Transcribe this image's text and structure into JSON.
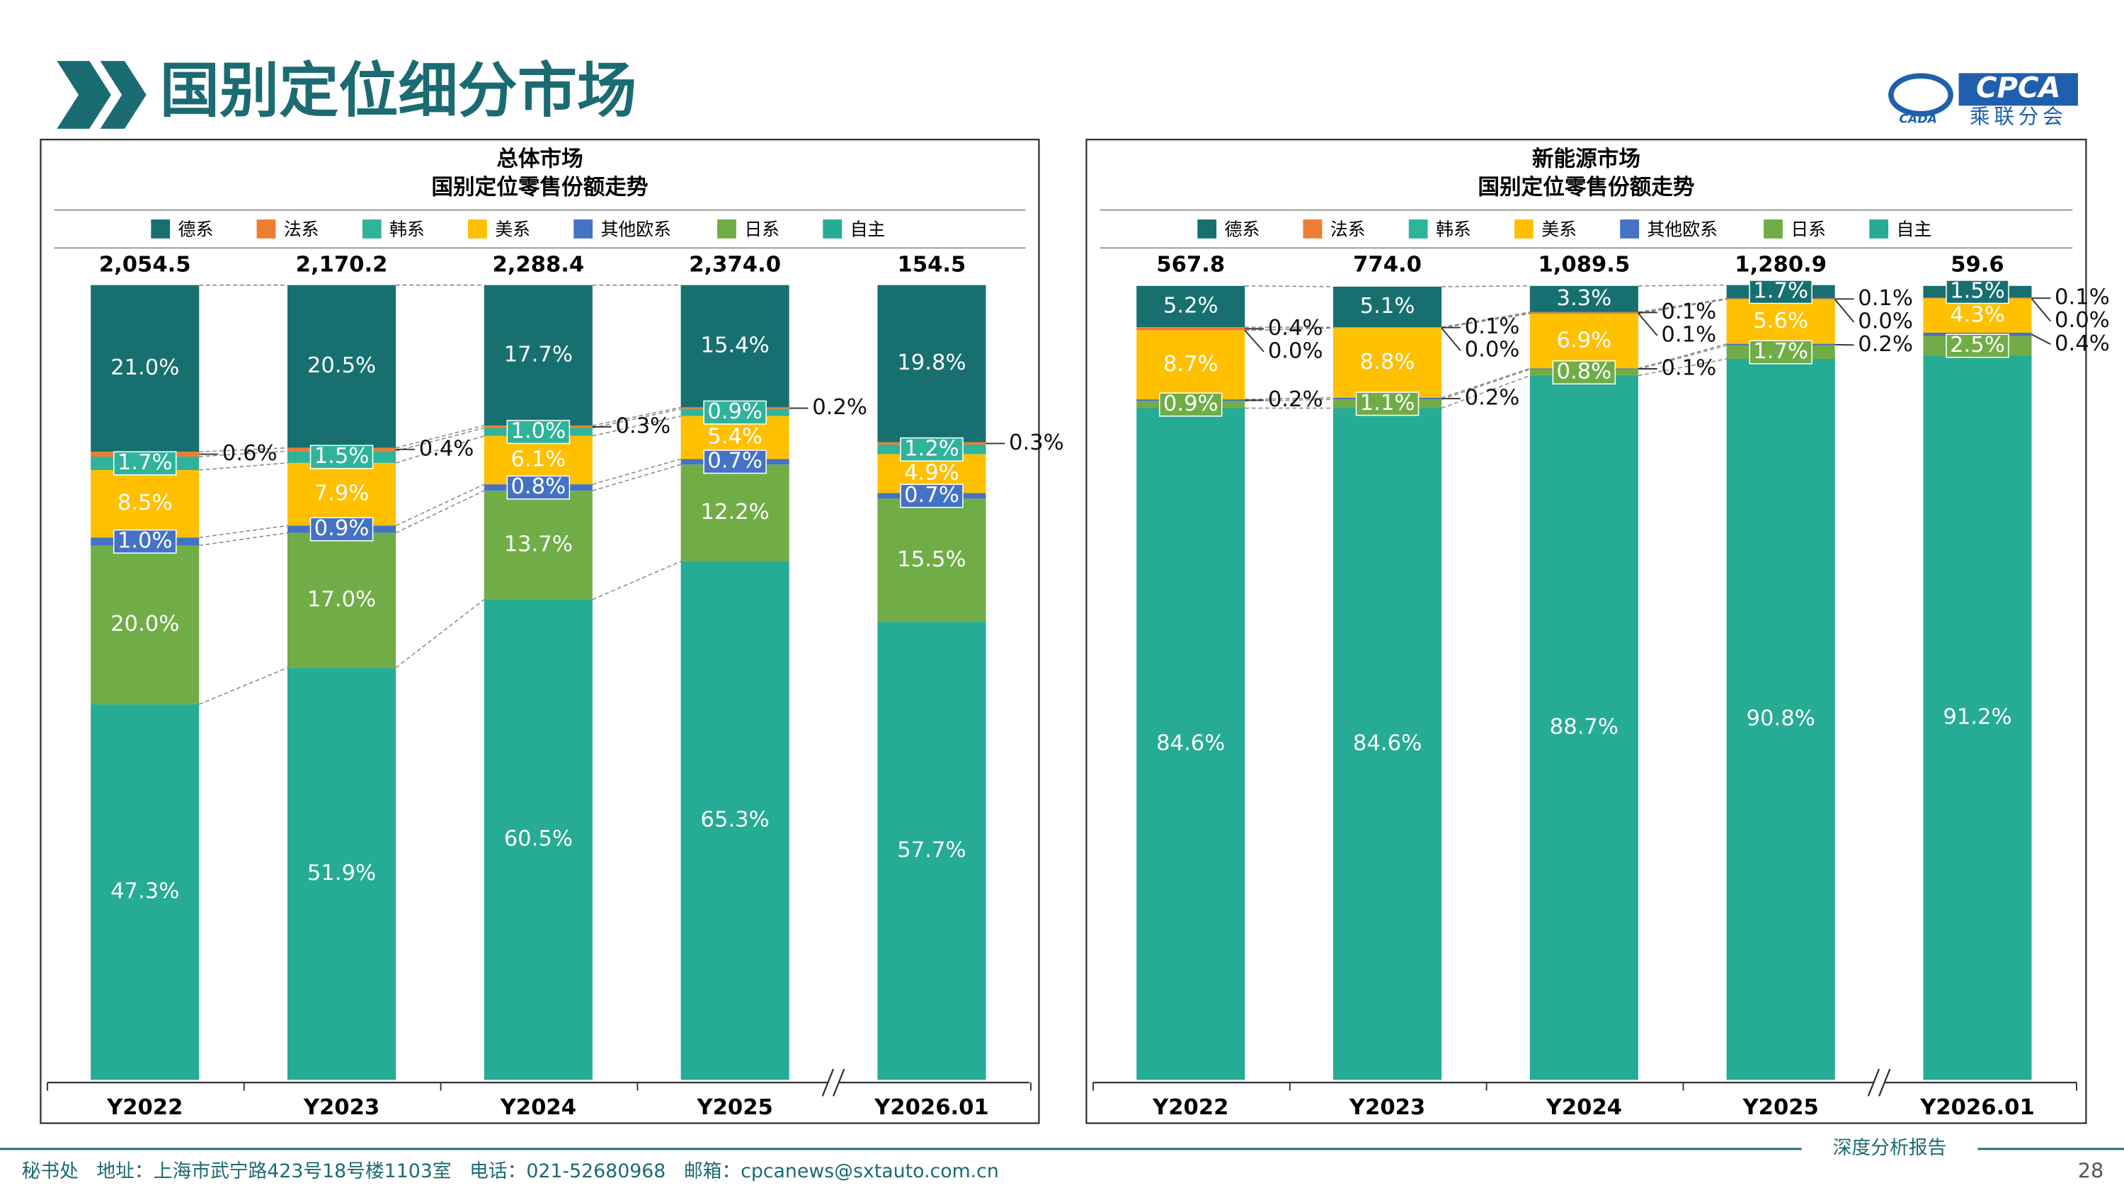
{
  "header": {
    "title": "国别定位细分市场",
    "logo_text": "CPCA",
    "logo_subtext": "乘联分会",
    "logo_small": "CADA"
  },
  "chart_data": [
    {
      "type": "bar",
      "stacked": true,
      "title": "总体市场",
      "subtitle": "国别定位零售份额走势",
      "categories": [
        "Y2022",
        "Y2023",
        "Y2024",
        "Y2025",
        "Y2026.01"
      ],
      "totals": {
        "values": [
          2054.5,
          2170.2,
          2288.4,
          2374.0,
          154.5
        ],
        "value_labels": [
          "2,054.5",
          "2,170.2",
          "2,288.4",
          "2,374.0",
          "154.5"
        ]
      },
      "ylim": [
        0,
        100
      ],
      "axis_break": true,
      "series": [
        {
          "name": "德系",
          "color": "#17706f",
          "values": [
            21.0,
            20.5,
            17.7,
            15.4,
            19.8
          ],
          "value_labels": [
            "21.0%",
            "20.5%",
            "17.7%",
            "15.4%",
            "19.8%"
          ]
        },
        {
          "name": "法系",
          "color": "#ed7d31",
          "values": [
            0.6,
            0.4,
            0.3,
            0.2,
            0.3
          ],
          "value_labels": [
            "0.6%",
            "0.4%",
            "0.3%",
            "0.2%",
            "0.3%"
          ]
        },
        {
          "name": "韩系",
          "color": "#2fb39b",
          "values": [
            1.7,
            1.5,
            1.0,
            0.9,
            1.2
          ],
          "value_labels": [
            "1.7%",
            "1.5%",
            "1.0%",
            "0.9%",
            "1.2%"
          ]
        },
        {
          "name": "美系",
          "color": "#ffc000",
          "values": [
            8.5,
            7.9,
            6.1,
            5.4,
            4.9
          ],
          "value_labels": [
            "8.5%",
            "7.9%",
            "6.1%",
            "5.4%",
            "4.9%"
          ]
        },
        {
          "name": "其他欧系",
          "color": "#4472c4",
          "values": [
            1.0,
            0.9,
            0.8,
            0.7,
            0.7
          ],
          "value_labels": [
            "1.0%",
            "0.9%",
            "0.8%",
            "0.7%",
            "0.7%"
          ]
        },
        {
          "name": "日系",
          "color": "#70ad47",
          "values": [
            20.0,
            17.0,
            13.7,
            12.2,
            15.5
          ],
          "value_labels": [
            "20.0%",
            "17.0%",
            "13.7%",
            "12.2%",
            "15.5%"
          ]
        },
        {
          "name": "自主",
          "color": "#26ab94",
          "values": [
            47.3,
            51.9,
            60.5,
            65.3,
            57.7
          ],
          "value_labels": [
            "47.3%",
            "51.9%",
            "60.5%",
            "65.3%",
            "57.7%"
          ]
        }
      ]
    },
    {
      "type": "bar",
      "stacked": true,
      "title": "新能源市场",
      "subtitle": "国别定位零售份额走势",
      "categories": [
        "Y2022",
        "Y2023",
        "Y2024",
        "Y2025",
        "Y2026.01"
      ],
      "totals": {
        "values": [
          567.8,
          774.0,
          1089.5,
          1280.9,
          59.6
        ],
        "value_labels": [
          "567.8",
          "774.0",
          "1,089.5",
          "1,280.9",
          "59.6"
        ]
      },
      "ylim": [
        0,
        100
      ],
      "axis_break": true,
      "series": [
        {
          "name": "德系",
          "color": "#17706f",
          "values": [
            5.2,
            5.1,
            3.3,
            1.7,
            1.5
          ],
          "value_labels": [
            "5.2%",
            "5.1%",
            "3.3%",
            "1.7%",
            "1.5%"
          ]
        },
        {
          "name": "法系",
          "color": "#ed7d31",
          "values": [
            0.4,
            0.1,
            0.1,
            0.1,
            0.1
          ],
          "value_labels": [
            "0.4%",
            "0.1%",
            "0.1%",
            "0.1%",
            "0.1%"
          ]
        },
        {
          "name": "韩系",
          "color": "#2fb39b",
          "values": [
            0.0,
            0.0,
            0.1,
            0.0,
            0.0
          ],
          "value_labels": [
            "0.0%",
            "0.0%",
            "0.1%",
            "0.0%",
            "0.0%"
          ]
        },
        {
          "name": "美系",
          "color": "#ffc000",
          "values": [
            8.7,
            8.8,
            6.9,
            5.6,
            4.3
          ],
          "value_labels": [
            "8.7%",
            "8.8%",
            "6.9%",
            "5.6%",
            "4.3%"
          ]
        },
        {
          "name": "其他欧系",
          "color": "#4472c4",
          "values": [
            0.2,
            0.2,
            0.1,
            0.2,
            0.4
          ],
          "value_labels": [
            "0.2%",
            "0.2%",
            "0.1%",
            "0.2%",
            "0.4%"
          ]
        },
        {
          "name": "日系",
          "color": "#70ad47",
          "values": [
            0.9,
            1.1,
            0.8,
            1.7,
            2.5
          ],
          "value_labels": [
            "0.9%",
            "1.1%",
            "0.8%",
            "1.7%",
            "2.5%"
          ]
        },
        {
          "name": "自主",
          "color": "#26ab94",
          "values": [
            84.6,
            84.6,
            88.7,
            90.8,
            91.2
          ],
          "value_labels": [
            "84.6%",
            "84.6%",
            "88.7%",
            "90.8%",
            "91.2%"
          ]
        }
      ]
    }
  ],
  "footer": {
    "contact": "秘书处   地址：上海市武宁路423号18号楼1103室   电话：021-52680968   邮箱：cpcanews@sxtauto.com.cn",
    "report": "深度分析报告",
    "page": "28"
  }
}
